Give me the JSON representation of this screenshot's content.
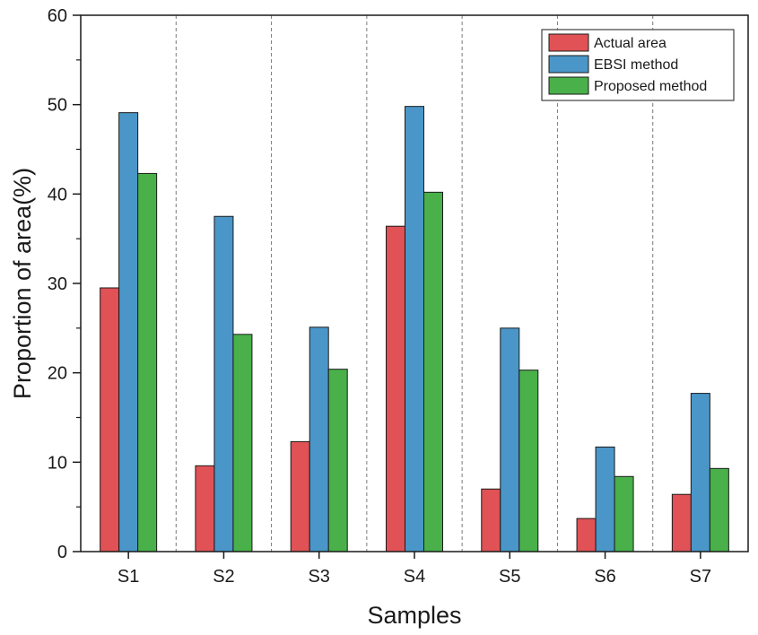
{
  "chart_data": {
    "type": "bar",
    "title": "",
    "xlabel": "Samples",
    "ylabel": "Proportion of area(%)",
    "ylim": [
      0,
      60
    ],
    "yticks": [
      0,
      10,
      20,
      30,
      40,
      50,
      60
    ],
    "ytick_labels": [
      "0",
      "10",
      "20",
      "30",
      "40",
      "50",
      "60"
    ],
    "categories": [
      "S1",
      "S2",
      "S3",
      "S4",
      "S5",
      "S6",
      "S7"
    ],
    "series": [
      {
        "name": "Actual area",
        "color": "#e05255",
        "values": [
          29.5,
          9.6,
          12.3,
          36.4,
          7.0,
          3.7,
          6.4
        ]
      },
      {
        "name": "EBSI method",
        "color": "#4a96c8",
        "values": [
          49.1,
          37.5,
          25.1,
          49.8,
          25.0,
          11.7,
          17.7
        ]
      },
      {
        "name": "Proposed method",
        "color": "#49b04a",
        "values": [
          42.3,
          24.3,
          20.4,
          40.2,
          20.3,
          8.4,
          9.3
        ]
      }
    ],
    "legend_position": "top-right",
    "grid": "vertical dashed separators between categories"
  }
}
